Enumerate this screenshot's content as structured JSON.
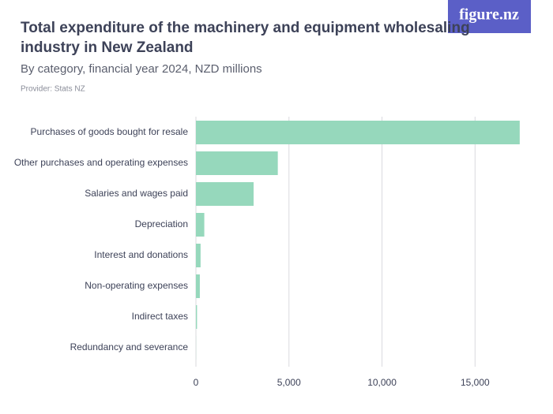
{
  "logo": "figure.nz",
  "chart_data": {
    "type": "bar",
    "orientation": "horizontal",
    "title": "Total expenditure of the machinery and equipment wholesaling industry in New Zealand",
    "subtitle": "By category, financial year 2024, NZD millions",
    "provider": "Provider: Stats NZ",
    "categories": [
      "Purchases of goods bought for resale",
      "Other purchases and operating expenses",
      "Salaries and wages paid",
      "Depreciation",
      "Interest and donations",
      "Non-operating expenses",
      "Indirect taxes",
      "Redundancy and severance"
    ],
    "values": [
      17400,
      4400,
      3100,
      450,
      250,
      210,
      60,
      5
    ],
    "color": "#96d8bc",
    "xlim": [
      0,
      18000
    ],
    "xticks": [
      0,
      {
        "value": 5000,
        "label": "5,000"
      },
      {
        "value": 10000,
        "label": "10,000"
      },
      {
        "value": 15000,
        "label": "15,000"
      }
    ],
    "grid": true
  }
}
